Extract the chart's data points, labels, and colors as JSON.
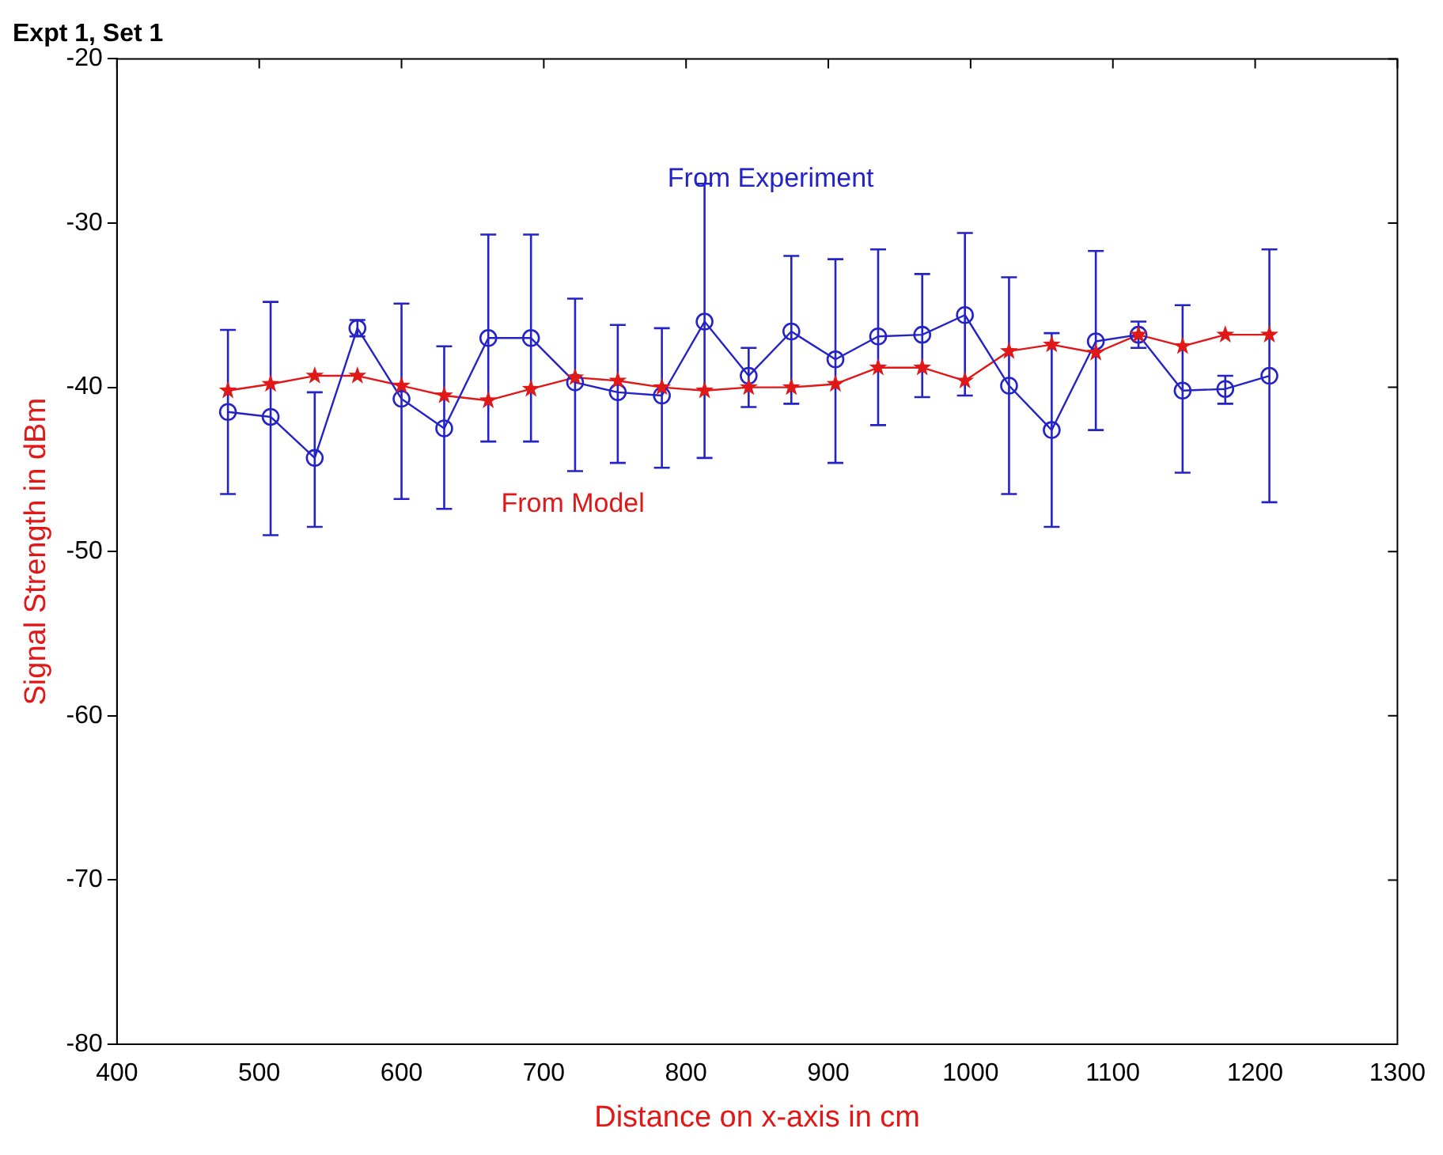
{
  "chart_data": {
    "type": "line",
    "title": "Expt 1, Set 1",
    "xlabel": "Distance on x-axis in cm",
    "ylabel": "Signal Strength in dBm",
    "xlim": [
      400,
      1300
    ],
    "xticks": [
      400,
      500,
      600,
      700,
      800,
      900,
      1000,
      1100,
      1200,
      1300
    ],
    "ylim": [
      -80,
      -20
    ],
    "yticks": [
      -80,
      -70,
      -60,
      -50,
      -40,
      -30,
      -20
    ],
    "grid": false,
    "legend": false,
    "line_style": "solid",
    "series": [
      {
        "name": "From Experiment",
        "color": "#2323c8",
        "marker": "circle",
        "x": [
          478,
          508,
          539,
          569,
          600,
          630,
          661,
          691,
          722,
          752,
          783,
          813,
          844,
          874,
          905,
          935,
          966,
          996,
          1027,
          1057,
          1088,
          1118,
          1149,
          1179,
          1210
        ],
        "values": [
          -41.5,
          -41.8,
          -44.3,
          -36.4,
          -40.7,
          -42.5,
          -37,
          -37,
          -39.7,
          -40.3,
          -40.5,
          -36,
          -39.3,
          -36.6,
          -38.3,
          -36.9,
          -36.8,
          -35.6,
          -39.9,
          -42.6,
          -37.2,
          -36.8,
          -40.2,
          -40.1,
          -39.3
        ],
        "errors": [
          [
            -46.5,
            -36.5
          ],
          [
            -49,
            -34.8
          ],
          [
            -48.5,
            -40.3
          ],
          [
            -36.9,
            -35.9
          ],
          [
            -46.8,
            -34.9
          ],
          [
            -47.4,
            -37.5
          ],
          [
            -43.3,
            -30.7
          ],
          [
            -43.3,
            -30.7
          ],
          [
            -45.1,
            -34.6
          ],
          [
            -44.6,
            -36.2
          ],
          [
            -44.9,
            -36.4
          ],
          [
            -44.3,
            -27.6
          ],
          [
            -41.2,
            -37.6
          ],
          [
            -41,
            -32
          ],
          [
            -44.6,
            -32.2
          ],
          [
            -42.3,
            -31.6
          ],
          [
            -40.6,
            -33.1
          ],
          [
            -40.5,
            -30.6
          ],
          [
            -46.5,
            -33.3
          ],
          [
            -48.5,
            -36.7
          ],
          [
            -42.6,
            -31.7
          ],
          [
            -37.6,
            -36
          ],
          [
            -45.2,
            -35
          ],
          [
            -41,
            -39.3
          ],
          [
            -47,
            -31.6
          ]
        ]
      },
      {
        "name": "From Model",
        "color": "#e01818",
        "marker": "star",
        "x": [
          478,
          508,
          539,
          569,
          600,
          630,
          661,
          691,
          722,
          752,
          783,
          813,
          844,
          874,
          905,
          935,
          966,
          996,
          1027,
          1057,
          1088,
          1118,
          1149,
          1179,
          1210
        ],
        "values": [
          -40.2,
          -39.8,
          -39.3,
          -39.3,
          -39.9,
          -40.5,
          -40.8,
          -40.1,
          -39.4,
          -39.6,
          -40,
          -40.2,
          -40,
          -40,
          -39.8,
          -38.8,
          -38.8,
          -39.6,
          -37.8,
          -37.4,
          -37.9,
          -36.8,
          -37.5,
          -36.8,
          -36.8
        ]
      }
    ]
  }
}
